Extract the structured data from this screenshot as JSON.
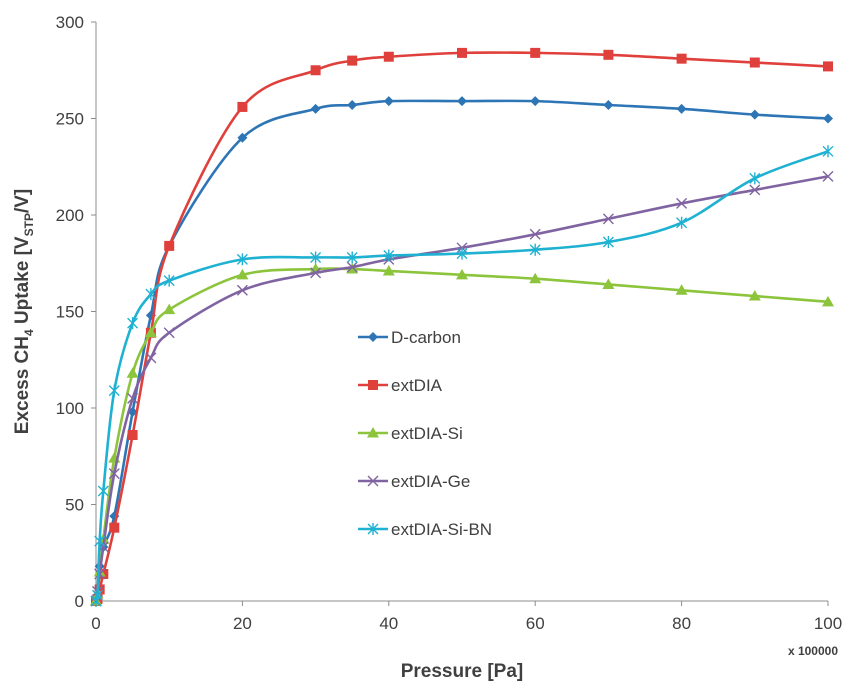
{
  "chart_data": {
    "type": "line",
    "title": "",
    "xlabel": "Pressure [Pa]",
    "x_multiplier": "x 100000",
    "ylabel": {
      "prefix": "Excess CH",
      "sub1": "4",
      "mid": " Uptake [V",
      "sub2": "STP",
      "suffix": "/V]"
    },
    "xlim": [
      0,
      100
    ],
    "ylim": [
      0,
      300
    ],
    "xticks": [
      0,
      20,
      40,
      60,
      80,
      100
    ],
    "yticks": [
      0,
      50,
      100,
      150,
      200,
      250,
      300
    ],
    "grid": false,
    "legend_position": "center",
    "series": [
      {
        "name": "D-carbon",
        "color": "#2E75B6",
        "marker": "diamond",
        "points": [
          [
            0,
            0
          ],
          [
            0.2,
            3
          ],
          [
            0.5,
            18
          ],
          [
            1,
            28
          ],
          [
            2.5,
            44
          ],
          [
            5,
            98
          ],
          [
            7.5,
            148
          ],
          [
            10,
            184
          ],
          [
            20,
            240
          ],
          [
            30,
            255
          ],
          [
            35,
            257
          ],
          [
            40,
            259
          ],
          [
            50,
            259
          ],
          [
            60,
            259
          ],
          [
            70,
            257
          ],
          [
            80,
            255
          ],
          [
            90,
            252
          ],
          [
            100,
            250
          ]
        ]
      },
      {
        "name": "extDIA",
        "color": "#E0403C",
        "marker": "square",
        "points": [
          [
            0,
            0
          ],
          [
            0.2,
            1
          ],
          [
            0.5,
            6
          ],
          [
            1,
            14
          ],
          [
            2.5,
            38
          ],
          [
            5,
            86
          ],
          [
            7.5,
            139
          ],
          [
            10,
            184
          ],
          [
            20,
            256
          ],
          [
            30,
            275
          ],
          [
            35,
            280
          ],
          [
            40,
            282
          ],
          [
            50,
            284
          ],
          [
            60,
            284
          ],
          [
            70,
            283
          ],
          [
            80,
            281
          ],
          [
            90,
            279
          ],
          [
            100,
            277
          ]
        ]
      },
      {
        "name": "extDIA-Si",
        "color": "#8CC43C",
        "marker": "triangle",
        "points": [
          [
            0,
            0
          ],
          [
            0.2,
            4
          ],
          [
            0.5,
            15
          ],
          [
            1,
            32
          ],
          [
            2.5,
            74
          ],
          [
            5,
            118
          ],
          [
            7.5,
            139
          ],
          [
            10,
            151
          ],
          [
            20,
            169
          ],
          [
            30,
            172
          ],
          [
            35,
            172
          ],
          [
            40,
            171
          ],
          [
            50,
            169
          ],
          [
            60,
            167
          ],
          [
            70,
            164
          ],
          [
            80,
            161
          ],
          [
            90,
            158
          ],
          [
            100,
            155
          ]
        ]
      },
      {
        "name": "extDIA-Ge",
        "color": "#8064A2",
        "marker": "x",
        "points": [
          [
            0,
            0
          ],
          [
            0.2,
            5
          ],
          [
            0.5,
            14
          ],
          [
            1,
            28
          ],
          [
            2.5,
            66
          ],
          [
            5,
            105
          ],
          [
            7.5,
            126
          ],
          [
            10,
            139
          ],
          [
            20,
            161
          ],
          [
            30,
            170
          ],
          [
            35,
            173
          ],
          [
            40,
            177
          ],
          [
            50,
            183
          ],
          [
            60,
            190
          ],
          [
            70,
            198
          ],
          [
            80,
            206
          ],
          [
            90,
            213
          ],
          [
            100,
            220
          ]
        ]
      },
      {
        "name": "extDIA-Si-BN",
        "color": "#1FB1D1",
        "marker": "star",
        "points": [
          [
            0,
            0
          ],
          [
            0.2,
            3
          ],
          [
            0.5,
            31
          ],
          [
            1,
            57
          ],
          [
            2.5,
            109
          ],
          [
            5,
            144
          ],
          [
            7.5,
            159
          ],
          [
            10,
            166
          ],
          [
            20,
            177
          ],
          [
            30,
            178
          ],
          [
            35,
            178
          ],
          [
            40,
            179
          ],
          [
            50,
            180
          ],
          [
            60,
            182
          ],
          [
            70,
            186
          ],
          [
            80,
            196
          ],
          [
            90,
            219
          ],
          [
            100,
            233
          ]
        ]
      }
    ]
  }
}
